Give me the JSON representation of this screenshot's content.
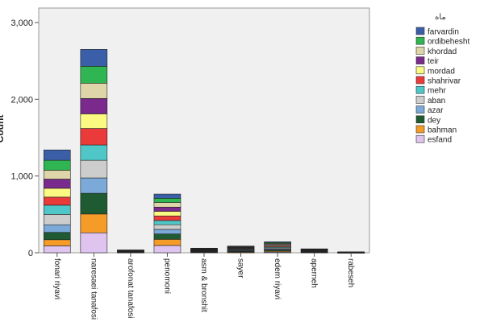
{
  "chart_data": {
    "type": "bar",
    "stacked": true,
    "title": "",
    "xlabel": "",
    "ylabel": "Count",
    "ylim": [
      0,
      3000
    ],
    "yticks": [
      0,
      1000,
      2000,
      3000
    ],
    "ytick_labels": [
      "0",
      "1,000",
      "2,000",
      "3,000"
    ],
    "grid": false,
    "legend": {
      "title": "ماه",
      "position": "right"
    },
    "categories": [
      "fonari riyavi",
      "naresaei tanafosi",
      "arofonat tanafosi",
      "penomoni",
      "asm & bronshit",
      "sayer",
      "edem riyavi",
      "aperneh",
      "rabeseh"
    ],
    "series": [
      {
        "name": "esfand",
        "color": "#dfc4f0",
        "values": [
          90,
          260,
          4,
          95,
          5,
          5,
          10,
          4,
          1
        ]
      },
      {
        "name": "bahman",
        "color": "#f59b28",
        "values": [
          80,
          245,
          3,
          80,
          5,
          8,
          12,
          4,
          1
        ]
      },
      {
        "name": "dey",
        "color": "#1e5a32",
        "values": [
          95,
          270,
          3,
          70,
          5,
          8,
          15,
          5,
          1
        ]
      },
      {
        "name": "azar",
        "color": "#7ba9d8",
        "values": [
          100,
          200,
          3,
          60,
          5,
          8,
          12,
          5,
          1
        ]
      },
      {
        "name": "aban",
        "color": "#cdcdcd",
        "values": [
          135,
          230,
          3,
          60,
          5,
          8,
          12,
          5,
          1
        ]
      },
      {
        "name": "mehr",
        "color": "#4fc6c8",
        "values": [
          120,
          200,
          3,
          55,
          5,
          8,
          12,
          4,
          1
        ]
      },
      {
        "name": "shahrivar",
        "color": "#ea3a3a",
        "values": [
          105,
          215,
          3,
          60,
          5,
          7,
          12,
          4,
          1
        ]
      },
      {
        "name": "mordad",
        "color": "#fafa82",
        "values": [
          115,
          190,
          3,
          60,
          5,
          7,
          12,
          4,
          1
        ]
      },
      {
        "name": "teir",
        "color": "#7a2a8c",
        "values": [
          120,
          200,
          3,
          55,
          5,
          7,
          12,
          4,
          1
        ]
      },
      {
        "name": "khordad",
        "color": "#ded6a8",
        "values": [
          115,
          200,
          3,
          60,
          5,
          7,
          12,
          4,
          1
        ]
      },
      {
        "name": "ordibehesht",
        "color": "#2fb552",
        "values": [
          130,
          220,
          3,
          55,
          5,
          7,
          12,
          4,
          1
        ]
      },
      {
        "name": "farvardin",
        "color": "#3b5ea8",
        "values": [
          135,
          220,
          3,
          55,
          5,
          7,
          10,
          4,
          1
        ]
      }
    ]
  }
}
